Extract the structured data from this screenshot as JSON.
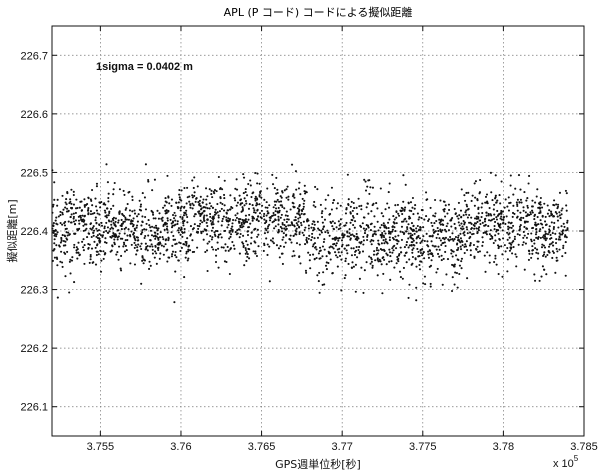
{
  "chart_data": {
    "type": "scatter",
    "title": "APL (P コード) コードによる擬似距離",
    "xlabel": "GPS週単位秒[秒]",
    "ylabel": "擬似距離[m]",
    "x_multiplier": "x 10",
    "x_multiplier_exp": "5",
    "annotation": "1sigma = 0.0402 m",
    "xlim": [
      3.752,
      3.785
    ],
    "ylim": [
      226.05,
      226.75
    ],
    "x_ticks": [
      3.755,
      3.76,
      3.765,
      3.77,
      3.775,
      3.78,
      3.785
    ],
    "x_tick_labels": [
      "3.755",
      "3.76",
      "3.765",
      "3.77",
      "3.775",
      "3.78",
      "3.785"
    ],
    "y_ticks": [
      226.1,
      226.2,
      226.3,
      226.4,
      226.5,
      226.6,
      226.7
    ],
    "y_tick_labels": [
      "226.1",
      "226.2",
      "226.3",
      "226.4",
      "226.5",
      "226.6",
      "226.7"
    ],
    "grid": true,
    "marker_color": "#111111",
    "series": [
      {
        "segments": [
          {
            "x": [
              3.752,
              3.757
            ],
            "mean": 226.405
          },
          {
            "x": [
              3.757,
              3.7605
            ],
            "mean": 226.4
          },
          {
            "x": [
              3.7605,
              3.7645
            ],
            "mean": 226.415
          },
          {
            "x": [
              3.7645,
              3.768
            ],
            "mean": 226.42
          },
          {
            "x": [
              3.768,
              3.7705
            ],
            "mean": 226.385
          },
          {
            "x": [
              3.7705,
              3.7745
            ],
            "mean": 226.395
          },
          {
            "x": [
              3.7745,
              3.7775
            ],
            "mean": 226.385
          },
          {
            "x": [
              3.7775,
              3.7815
            ],
            "mean": 226.41
          },
          {
            "x": [
              3.7815,
              3.784
            ],
            "mean": 226.4
          }
        ],
        "sigma": 0.0402,
        "point_count": 2600,
        "y_range_observed": [
          226.26,
          226.535
        ]
      }
    ]
  }
}
